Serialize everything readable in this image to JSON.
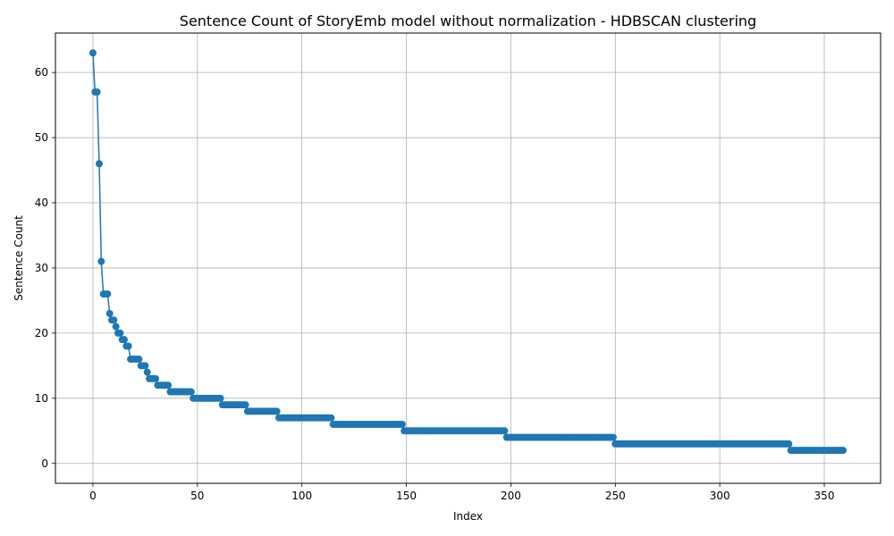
{
  "chart_data": {
    "type": "line",
    "title": "Sentence Count of StoryEmb model without normalization - HDBSCAN clustering",
    "xlabel": "Index",
    "ylabel": "Sentence Count",
    "xlim": [
      -17.95,
      376.95
    ],
    "ylim": [
      -3.05,
      66.05
    ],
    "xticks": [
      0,
      50,
      100,
      150,
      200,
      250,
      300,
      350
    ],
    "yticks": [
      0,
      10,
      20,
      30,
      40,
      50,
      60
    ],
    "grid": true,
    "marker": "circle",
    "color": "#1f77b4",
    "series": [
      {
        "head_values": [
          63,
          57,
          57,
          46,
          31,
          26,
          26,
          26,
          23,
          22,
          22,
          21,
          20,
          20,
          19,
          19,
          18,
          18,
          16,
          16,
          16,
          16,
          16,
          15,
          15,
          15,
          14,
          13,
          13,
          13,
          13,
          12,
          12,
          12,
          12,
          12,
          12
        ],
        "runs": [
          {
            "value": 11,
            "from": 37,
            "to": 47
          },
          {
            "value": 10,
            "from": 48,
            "to": 61
          },
          {
            "value": 9,
            "from": 62,
            "to": 73
          },
          {
            "value": 8,
            "from": 74,
            "to": 88
          },
          {
            "value": 7,
            "from": 89,
            "to": 114
          },
          {
            "value": 6,
            "from": 115,
            "to": 148
          },
          {
            "value": 5,
            "from": 149,
            "to": 197
          },
          {
            "value": 4,
            "from": 198,
            "to": 249
          },
          {
            "value": 3,
            "from": 250,
            "to": 333
          },
          {
            "value": 2,
            "from": 334,
            "to": 359
          }
        ]
      }
    ]
  }
}
